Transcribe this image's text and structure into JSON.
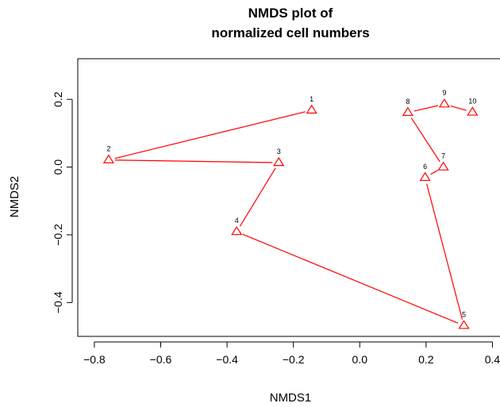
{
  "chart_data": {
    "type": "scatter",
    "title_line1": "NMDS plot of",
    "title_line2": "normalized cell numbers",
    "xlabel": "NMDS1",
    "ylabel": "NMDS2",
    "xlim": [
      -0.85,
      0.43
    ],
    "ylim": [
      -0.5,
      0.32
    ],
    "xticks": [
      -0.8,
      -0.6,
      -0.4,
      -0.2,
      0.0,
      0.2,
      0.4
    ],
    "xtick_labels": [
      "−0.8",
      "−0.6",
      "−0.4",
      "−0.2",
      "0.0",
      "0.2",
      "0.4"
    ],
    "yticks": [
      -0.4,
      -0.2,
      0.0,
      0.2
    ],
    "ytick_labels": [
      "−0.4",
      "−0.2",
      "0.0",
      "0.2"
    ],
    "grid": false,
    "marker": "triangle-open",
    "color": "#ff0000",
    "points": [
      {
        "label": "1",
        "x": -0.145,
        "y": 0.168
      },
      {
        "label": "2",
        "x": -0.757,
        "y": 0.021
      },
      {
        "label": "3",
        "x": -0.244,
        "y": 0.013
      },
      {
        "label": "4",
        "x": -0.371,
        "y": -0.191
      },
      {
        "label": "5",
        "x": 0.314,
        "y": -0.468
      },
      {
        "label": "6",
        "x": 0.197,
        "y": -0.031
      },
      {
        "label": "7",
        "x": 0.252,
        "y": 0.0
      },
      {
        "label": "8",
        "x": 0.145,
        "y": 0.161
      },
      {
        "label": "9",
        "x": 0.255,
        "y": 0.186
      },
      {
        "label": "10",
        "x": 0.34,
        "y": 0.162
      }
    ],
    "path_order": [
      "1",
      "2",
      "3",
      "4",
      "5",
      "6",
      "7",
      "8",
      "9",
      "10"
    ]
  }
}
